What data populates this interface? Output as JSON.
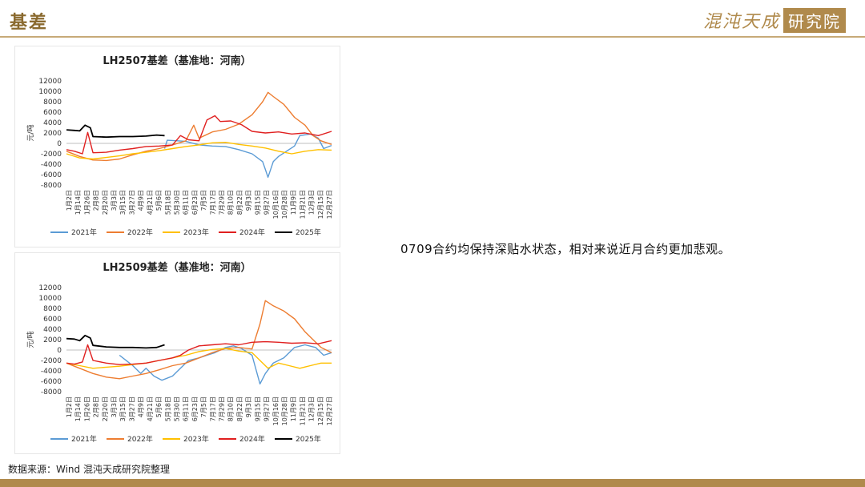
{
  "header": {
    "title": "基差"
  },
  "logo": {
    "text": "混沌天成",
    "box_text": "研究院"
  },
  "annotation": "0709合约均保持深贴水状态，相对来说近月合约更加悲观。",
  "source": "数据来源：Wind 混沌天成研究院整理",
  "colors": {
    "accent": "#b08a4c",
    "2021年": "#5b9bd5",
    "2022年": "#ed7d31",
    "2023年": "#ffc000",
    "2024年": "#e02020",
    "2025年": "#000000"
  },
  "chart_data": [
    {
      "type": "line",
      "title": "LH2507基差（基准地：河南）",
      "ylabel": "元/吨",
      "ylim": [
        -8000,
        12000
      ],
      "yticks": [
        -8000,
        -6000,
        -4000,
        -2000,
        0,
        2000,
        4000,
        6000,
        8000,
        10000,
        12000
      ],
      "x_ticks": [
        "1月2日",
        "1月14日",
        "1月26日",
        "2月8日",
        "2月20日",
        "3月3日",
        "3月15日",
        "3月27日",
        "4月9日",
        "4月21日",
        "5月6日",
        "5月18日",
        "5月30日",
        "6月11日",
        "6月23日",
        "7月5日",
        "7月17日",
        "7月29日",
        "8月10日",
        "8月22日",
        "9月3日",
        "9月15日",
        "9月27日",
        "10月16日",
        "10月28日",
        "11月9日",
        "11月21日",
        "12月3日",
        "12月15日",
        "12月27日"
      ],
      "legend_position": "bottom",
      "grid": false,
      "series": [
        {
          "name": "2021年",
          "color": "#5b9bd5",
          "points": [
            [
              0.37,
              -1000
            ],
            [
              0.38,
              600
            ],
            [
              0.45,
              400
            ],
            [
              0.5,
              -300
            ],
            [
              0.55,
              -500
            ],
            [
              0.6,
              -600
            ],
            [
              0.65,
              -1200
            ],
            [
              0.7,
              -2000
            ],
            [
              0.74,
              -3500
            ],
            [
              0.75,
              -5000
            ],
            [
              0.76,
              -6500
            ],
            [
              0.78,
              -3500
            ],
            [
              0.8,
              -2500
            ],
            [
              0.83,
              -1500
            ],
            [
              0.86,
              -500
            ],
            [
              0.88,
              1500
            ],
            [
              0.92,
              1800
            ],
            [
              0.95,
              1000
            ],
            [
              0.97,
              -1000
            ],
            [
              1.0,
              -400
            ]
          ]
        },
        {
          "name": "2022年",
          "color": "#ed7d31",
          "points": [
            [
              0.0,
              -1500
            ],
            [
              0.05,
              -2500
            ],
            [
              0.1,
              -3200
            ],
            [
              0.15,
              -3300
            ],
            [
              0.2,
              -3000
            ],
            [
              0.25,
              -2200
            ],
            [
              0.3,
              -1500
            ],
            [
              0.35,
              -1000
            ],
            [
              0.4,
              -300
            ],
            [
              0.45,
              500
            ],
            [
              0.48,
              3500
            ],
            [
              0.5,
              1000
            ],
            [
              0.55,
              2200
            ],
            [
              0.6,
              2700
            ],
            [
              0.65,
              3700
            ],
            [
              0.7,
              5500
            ],
            [
              0.74,
              8000
            ],
            [
              0.76,
              9800
            ],
            [
              0.78,
              9000
            ],
            [
              0.82,
              7500
            ],
            [
              0.86,
              5000
            ],
            [
              0.9,
              3500
            ],
            [
              0.93,
              1500
            ],
            [
              0.96,
              500
            ],
            [
              1.0,
              -200
            ]
          ]
        },
        {
          "name": "2023年",
          "color": "#ffc000",
          "points": [
            [
              0.0,
              -2000
            ],
            [
              0.05,
              -2800
            ],
            [
              0.1,
              -3000
            ],
            [
              0.15,
              -2700
            ],
            [
              0.2,
              -2400
            ],
            [
              0.25,
              -2000
            ],
            [
              0.3,
              -1700
            ],
            [
              0.35,
              -1400
            ],
            [
              0.4,
              -1000
            ],
            [
              0.45,
              -600
            ],
            [
              0.5,
              -300
            ],
            [
              0.55,
              100
            ],
            [
              0.6,
              200
            ],
            [
              0.65,
              -200
            ],
            [
              0.7,
              -500
            ],
            [
              0.75,
              -900
            ],
            [
              0.8,
              -1500
            ],
            [
              0.85,
              -2000
            ],
            [
              0.9,
              -1500
            ],
            [
              0.95,
              -1200
            ],
            [
              1.0,
              -1300
            ]
          ]
        },
        {
          "name": "2024年",
          "color": "#e02020",
          "points": [
            [
              0.0,
              -1200
            ],
            [
              0.03,
              -1500
            ],
            [
              0.06,
              -2000
            ],
            [
              0.08,
              2100
            ],
            [
              0.1,
              -1800
            ],
            [
              0.15,
              -1700
            ],
            [
              0.2,
              -1300
            ],
            [
              0.25,
              -1000
            ],
            [
              0.3,
              -600
            ],
            [
              0.35,
              -500
            ],
            [
              0.4,
              -300
            ],
            [
              0.43,
              1500
            ],
            [
              0.46,
              700
            ],
            [
              0.5,
              500
            ],
            [
              0.53,
              4500
            ],
            [
              0.56,
              5300
            ],
            [
              0.58,
              4200
            ],
            [
              0.62,
              4300
            ],
            [
              0.66,
              3600
            ],
            [
              0.7,
              2300
            ],
            [
              0.75,
              2000
            ],
            [
              0.8,
              2200
            ],
            [
              0.85,
              1800
            ],
            [
              0.9,
              2000
            ],
            [
              0.95,
              1500
            ],
            [
              1.0,
              2300
            ]
          ]
        },
        {
          "name": "2025年",
          "color": "#000000",
          "points": [
            [
              0.0,
              2600
            ],
            [
              0.03,
              2500
            ],
            [
              0.05,
              2400
            ],
            [
              0.07,
              3500
            ],
            [
              0.09,
              3000
            ],
            [
              0.1,
              1300
            ],
            [
              0.15,
              1200
            ],
            [
              0.2,
              1300
            ],
            [
              0.25,
              1300
            ],
            [
              0.3,
              1400
            ],
            [
              0.34,
              1600
            ],
            [
              0.37,
              1500
            ]
          ]
        }
      ]
    },
    {
      "type": "line",
      "title": "LH2509基差（基准地：河南）",
      "ylabel": "元/吨",
      "ylim": [
        -8000,
        12000
      ],
      "yticks": [
        -8000,
        -6000,
        -4000,
        -2000,
        0,
        2000,
        4000,
        6000,
        8000,
        10000,
        12000
      ],
      "x_ticks": [
        "1月2日",
        "1月14日",
        "1月26日",
        "2月8日",
        "2月20日",
        "3月3日",
        "3月15日",
        "3月27日",
        "4月9日",
        "4月21日",
        "5月6日",
        "5月18日",
        "5月30日",
        "6月11日",
        "6月23日",
        "7月5日",
        "7月17日",
        "7月29日",
        "8月10日",
        "8月22日",
        "9月3日",
        "9月15日",
        "9月27日",
        "10月16日",
        "10月28日",
        "11月9日",
        "11月21日",
        "12月3日",
        "12月15日",
        "12月27日"
      ],
      "legend_position": "bottom",
      "grid": false,
      "series": [
        {
          "name": "2021年",
          "color": "#5b9bd5",
          "points": [
            [
              0.2,
              -1000
            ],
            [
              0.22,
              -1800
            ],
            [
              0.25,
              -3000
            ],
            [
              0.28,
              -4500
            ],
            [
              0.3,
              -3500
            ],
            [
              0.33,
              -5000
            ],
            [
              0.36,
              -5800
            ],
            [
              0.4,
              -5000
            ],
            [
              0.43,
              -3500
            ],
            [
              0.46,
              -2000
            ],
            [
              0.5,
              -1500
            ],
            [
              0.53,
              -1000
            ],
            [
              0.56,
              -500
            ],
            [
              0.6,
              500
            ],
            [
              0.63,
              800
            ],
            [
              0.66,
              300
            ],
            [
              0.7,
              -1000
            ],
            [
              0.73,
              -6500
            ],
            [
              0.75,
              -4500
            ],
            [
              0.78,
              -2500
            ],
            [
              0.82,
              -1500
            ],
            [
              0.86,
              500
            ],
            [
              0.9,
              1000
            ],
            [
              0.94,
              500
            ],
            [
              0.97,
              -1000
            ],
            [
              1.0,
              -500
            ]
          ]
        },
        {
          "name": "2022年",
          "color": "#ed7d31",
          "points": [
            [
              0.0,
              -2500
            ],
            [
              0.05,
              -3500
            ],
            [
              0.1,
              -4500
            ],
            [
              0.15,
              -5200
            ],
            [
              0.2,
              -5500
            ],
            [
              0.25,
              -5000
            ],
            [
              0.3,
              -4500
            ],
            [
              0.35,
              -3800
            ],
            [
              0.4,
              -3000
            ],
            [
              0.45,
              -2500
            ],
            [
              0.5,
              -1500
            ],
            [
              0.55,
              -500
            ],
            [
              0.6,
              300
            ],
            [
              0.65,
              500
            ],
            [
              0.7,
              200
            ],
            [
              0.73,
              5000
            ],
            [
              0.75,
              9500
            ],
            [
              0.78,
              8500
            ],
            [
              0.82,
              7500
            ],
            [
              0.86,
              6000
            ],
            [
              0.9,
              3500
            ],
            [
              0.93,
              2000
            ],
            [
              0.96,
              500
            ],
            [
              1.0,
              -500
            ]
          ]
        },
        {
          "name": "2023年",
          "color": "#ffc000",
          "points": [
            [
              0.0,
              -2500
            ],
            [
              0.05,
              -3000
            ],
            [
              0.1,
              -3500
            ],
            [
              0.15,
              -3300
            ],
            [
              0.2,
              -3100
            ],
            [
              0.25,
              -2800
            ],
            [
              0.3,
              -2500
            ],
            [
              0.35,
              -2000
            ],
            [
              0.4,
              -1500
            ],
            [
              0.45,
              -1000
            ],
            [
              0.5,
              -300
            ],
            [
              0.55,
              100
            ],
            [
              0.6,
              300
            ],
            [
              0.65,
              -200
            ],
            [
              0.7,
              -500
            ],
            [
              0.73,
              -2000
            ],
            [
              0.76,
              -3500
            ],
            [
              0.8,
              -2500
            ],
            [
              0.84,
              -3000
            ],
            [
              0.88,
              -3500
            ],
            [
              0.92,
              -3000
            ],
            [
              0.96,
              -2500
            ],
            [
              1.0,
              -2500
            ]
          ]
        },
        {
          "name": "2024年",
          "color": "#e02020",
          "points": [
            [
              0.0,
              -2500
            ],
            [
              0.03,
              -2700
            ],
            [
              0.06,
              -2300
            ],
            [
              0.08,
              1000
            ],
            [
              0.1,
              -2000
            ],
            [
              0.15,
              -2500
            ],
            [
              0.2,
              -2800
            ],
            [
              0.25,
              -2700
            ],
            [
              0.3,
              -2500
            ],
            [
              0.35,
              -2000
            ],
            [
              0.4,
              -1500
            ],
            [
              0.43,
              -1000
            ],
            [
              0.46,
              0
            ],
            [
              0.5,
              800
            ],
            [
              0.55,
              1000
            ],
            [
              0.6,
              1200
            ],
            [
              0.65,
              1000
            ],
            [
              0.7,
              1500
            ],
            [
              0.75,
              1600
            ],
            [
              0.8,
              1500
            ],
            [
              0.85,
              1300
            ],
            [
              0.9,
              1400
            ],
            [
              0.95,
              1200
            ],
            [
              1.0,
              1800
            ]
          ]
        },
        {
          "name": "2025年",
          "color": "#000000",
          "points": [
            [
              0.0,
              2200
            ],
            [
              0.03,
              2100
            ],
            [
              0.05,
              1800
            ],
            [
              0.07,
              2800
            ],
            [
              0.09,
              2300
            ],
            [
              0.1,
              900
            ],
            [
              0.15,
              600
            ],
            [
              0.2,
              500
            ],
            [
              0.25,
              500
            ],
            [
              0.3,
              400
            ],
            [
              0.34,
              500
            ],
            [
              0.37,
              1000
            ]
          ]
        }
      ]
    }
  ]
}
